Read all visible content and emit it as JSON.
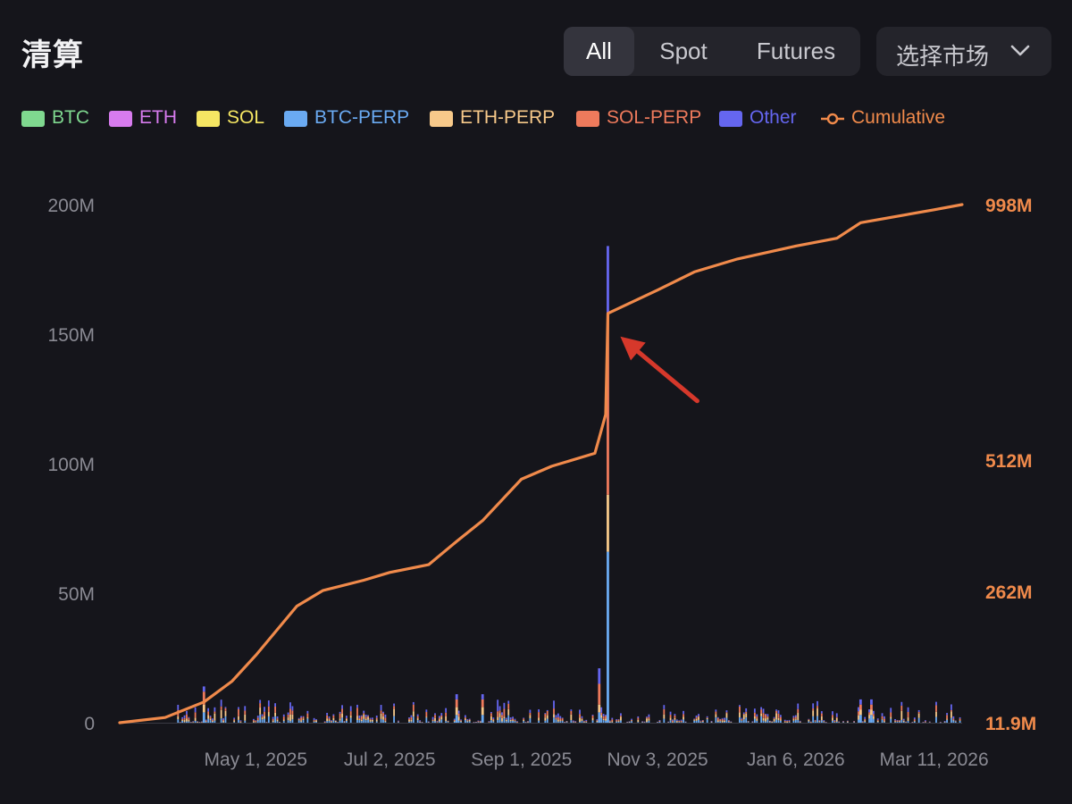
{
  "page": {
    "title": "清算"
  },
  "tabs": [
    {
      "label": "All",
      "active": true
    },
    {
      "label": "Spot",
      "active": false
    },
    {
      "label": "Futures",
      "active": false
    }
  ],
  "market_select": {
    "label": "选择市场"
  },
  "colors": {
    "background": "#15151b",
    "cumulative": "#f08a4b",
    "annotation_arrow": "#d6382b"
  },
  "legend": [
    {
      "name": "BTC",
      "color": "#7fd88f"
    },
    {
      "name": "ETH",
      "color": "#d77bee"
    },
    {
      "name": "SOL",
      "color": "#f5e663"
    },
    {
      "name": "BTC-PERP",
      "color": "#6aaaf2"
    },
    {
      "name": "ETH-PERP",
      "color": "#f7c98a"
    },
    {
      "name": "SOL-PERP",
      "color": "#ee7a5c"
    },
    {
      "name": "Other",
      "color": "#6566f0"
    },
    {
      "name": "Cumulative",
      "color": "#f08a4b"
    }
  ],
  "chart_data": {
    "type": "bar",
    "left_axis": {
      "ticks": [
        "0",
        "50M",
        "100M",
        "150M",
        "200M"
      ],
      "tick_values": [
        0,
        50,
        100,
        150,
        200
      ],
      "unit": "M",
      "range": [
        0,
        200
      ]
    },
    "right_axis": {
      "ticks": [
        "11.9M",
        "262M",
        "512M",
        "998M"
      ],
      "tick_values": [
        11.9,
        262,
        512,
        998
      ],
      "unit": "M"
    },
    "x_axis": {
      "ticks": [
        "May 1, 2025",
        "Jul 2, 2025",
        "Sep 1, 2025",
        "Nov 3, 2025",
        "Jan 6, 2026",
        "Mar 11, 2026"
      ]
    },
    "x_range": [
      "2025-02-27",
      "2026-03-24"
    ],
    "x_tick_dates": [
      "2025-05-01",
      "2025-07-02",
      "2025-09-01",
      "2025-11-03",
      "2026-01-06",
      "2026-03-11"
    ],
    "series_stack_order": [
      "BTC-PERP",
      "ETH-PERP",
      "SOL-PERP",
      "Other"
    ],
    "notable_bars": [
      {
        "date": "2025-10-11",
        "total": 184,
        "BTC-PERP": 66,
        "ETH-PERP": 22,
        "SOL-PERP": 70,
        "Other": 26
      },
      {
        "date": "2025-10-07",
        "total": 21,
        "BTC-PERP": 4,
        "ETH-PERP": 3,
        "SOL-PERP": 8,
        "Other": 6
      },
      {
        "date": "2025-04-07",
        "total": 14,
        "BTC-PERP": 4,
        "ETH-PERP": 3,
        "SOL-PERP": 5,
        "Other": 2
      },
      {
        "date": "2025-08-02",
        "total": 11,
        "BTC-PERP": 3,
        "ETH-PERP": 3,
        "SOL-PERP": 3,
        "Other": 2
      },
      {
        "date": "2025-08-14",
        "total": 11,
        "BTC-PERP": 3,
        "ETH-PERP": 3,
        "SOL-PERP": 3,
        "Other": 2
      },
      {
        "date": "2026-02-05",
        "total": 9,
        "BTC-PERP": 3,
        "ETH-PERP": 2,
        "SOL-PERP": 2,
        "Other": 2
      },
      {
        "date": "2026-02-10",
        "total": 9,
        "BTC-PERP": 3,
        "ETH-PERP": 2,
        "SOL-PERP": 2,
        "Other": 2
      }
    ],
    "typical_daily_range": [
      0,
      9
    ],
    "cumulative": [
      {
        "date": "2025-02-27",
        "value": 0
      },
      {
        "date": "2025-03-20",
        "value": 2
      },
      {
        "date": "2025-04-07",
        "value": 8
      },
      {
        "date": "2025-04-20",
        "value": 16
      },
      {
        "date": "2025-05-01",
        "value": 26
      },
      {
        "date": "2025-05-20",
        "value": 45
      },
      {
        "date": "2025-06-01",
        "value": 51
      },
      {
        "date": "2025-06-20",
        "value": 55
      },
      {
        "date": "2025-07-02",
        "value": 58
      },
      {
        "date": "2025-07-20",
        "value": 61
      },
      {
        "date": "2025-08-02",
        "value": 70
      },
      {
        "date": "2025-08-14",
        "value": 78
      },
      {
        "date": "2025-09-01",
        "value": 94
      },
      {
        "date": "2025-09-15",
        "value": 99
      },
      {
        "date": "2025-10-05",
        "value": 104
      },
      {
        "date": "2025-10-07",
        "value": 110
      },
      {
        "date": "2025-10-10",
        "value": 119
      },
      {
        "date": "2025-10-11",
        "value": 158
      },
      {
        "date": "2025-11-03",
        "value": 167
      },
      {
        "date": "2025-11-20",
        "value": 174
      },
      {
        "date": "2025-12-10",
        "value": 179
      },
      {
        "date": "2026-01-06",
        "value": 184
      },
      {
        "date": "2026-01-25",
        "value": 187
      },
      {
        "date": "2026-02-05",
        "value": 193
      },
      {
        "date": "2026-03-11",
        "value": 198
      },
      {
        "date": "2026-03-24",
        "value": 200
      }
    ],
    "annotation": {
      "type": "arrow",
      "points_to_date": "2025-10-11"
    },
    "grid": false,
    "legend_position": "top-left"
  }
}
